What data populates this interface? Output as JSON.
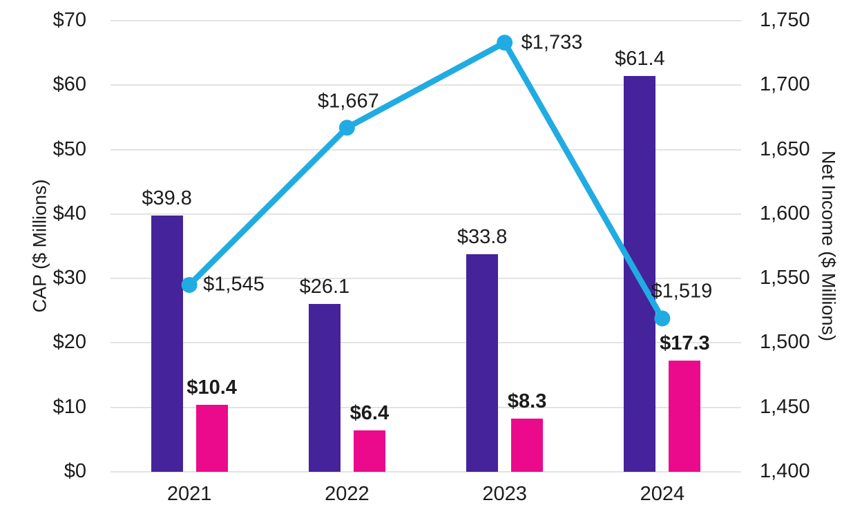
{
  "chart_data": {
    "type": "combo-bar-line",
    "categories": [
      "2021",
      "2022",
      "2023",
      "2024"
    ],
    "series": [
      {
        "name": "CAP purple bars",
        "type": "bar",
        "axis": "left",
        "color": "#45239B",
        "values": [
          39.8,
          26.1,
          33.8,
          61.4
        ],
        "labels": [
          "$39.8",
          "$26.1",
          "$33.8",
          "$61.4"
        ]
      },
      {
        "name": "CAP pink bars",
        "type": "bar",
        "axis": "left",
        "color": "#EB0A8C",
        "values": [
          10.4,
          6.4,
          8.3,
          17.3
        ],
        "labels": [
          "$10.4",
          "$6.4",
          "$8.3",
          "$17.3"
        ]
      },
      {
        "name": "Net Income line",
        "type": "line",
        "axis": "right",
        "color": "#20ACE2",
        "values": [
          1545,
          1667,
          1733,
          1519
        ],
        "labels": [
          "$1,545",
          "$1,667",
          "$1,733",
          "$1,519"
        ]
      }
    ],
    "left_axis": {
      "title": "CAP ($ Millions)",
      "min": 0,
      "max": 70,
      "step": 10,
      "tick_labels": [
        "$0",
        "$10",
        "$20",
        "$30",
        "$40",
        "$50",
        "$60",
        "$70"
      ]
    },
    "right_axis": {
      "title": "Net Income ($ Millions)",
      "min": 1400,
      "max": 1750,
      "step": 50,
      "tick_labels": [
        "1,400",
        "1,450",
        "1,500",
        "1,550",
        "1,600",
        "1,650",
        "1,700",
        "1,750"
      ]
    },
    "grid": "horizontal only",
    "legend": "none",
    "colors": {
      "purple_bar": "#45239B",
      "pink_bar": "#EB0A8C",
      "cyan_line": "#20ACE2",
      "gridline": "#e3e3e3",
      "text": "#1c1c1c"
    }
  }
}
